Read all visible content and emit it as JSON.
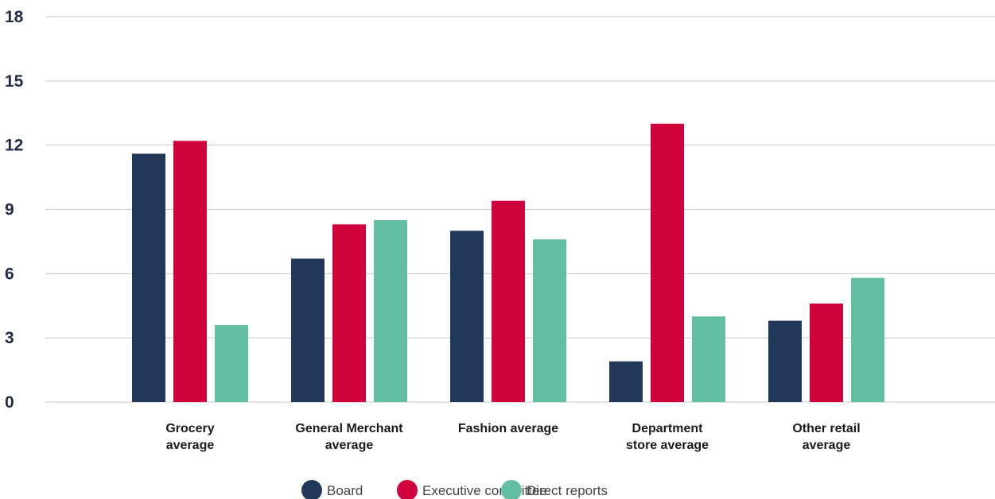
{
  "chart_data": {
    "type": "bar",
    "categories": [
      [
        "Grocery",
        "average"
      ],
      [
        "General Merchant",
        "average"
      ],
      [
        "Fashion average"
      ],
      [
        "Department",
        "store average"
      ],
      [
        "Other retail",
        "average"
      ]
    ],
    "series": [
      {
        "name": "Board",
        "color": "#213859",
        "values": [
          11.6,
          6.7,
          8.0,
          1.9,
          3.8
        ]
      },
      {
        "name": "Executive committee",
        "color": "#d0023c",
        "values": [
          12.2,
          8.3,
          9.4,
          13.0,
          4.6
        ]
      },
      {
        "name": "Direct reports",
        "color": "#63bfa2",
        "values": [
          3.6,
          8.5,
          7.6,
          4.0,
          5.8
        ]
      }
    ],
    "yticks": [
      0,
      3,
      6,
      9,
      12,
      15,
      18
    ],
    "ylim": [
      0,
      18
    ],
    "grid": true,
    "legend_position": "bottom-center",
    "title": "",
    "xlabel": "",
    "ylabel": ""
  }
}
